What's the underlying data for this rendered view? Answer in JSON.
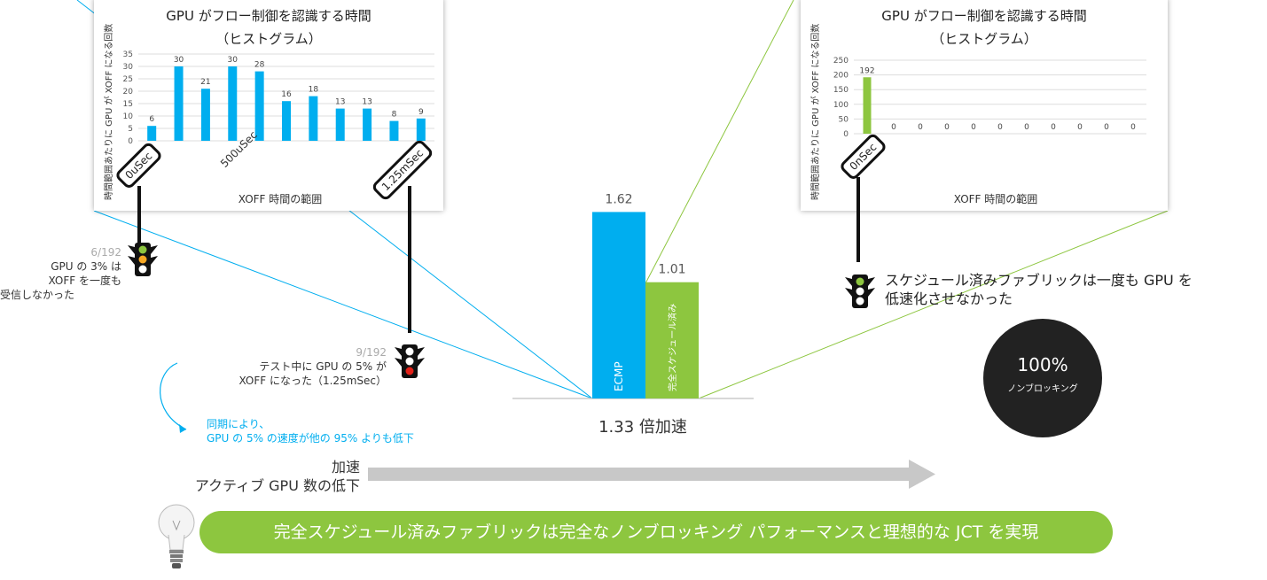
{
  "colors": {
    "blue": "#00AEEF",
    "green": "#8DC63F",
    "arrow": "#c8c8c8",
    "dark": "#222222"
  },
  "left_panel": {
    "title_line1": "GPU がフロー制御を認識する時間",
    "title_line2": "（ヒストグラム）",
    "ylabel": "時間範囲あたりに GPU が XOFF になる回数",
    "xlabel": "XOFF 時間の範囲",
    "x_mid_label": "500uSec",
    "tag_start": "0uSec",
    "tag_end": "1.25mSec"
  },
  "right_panel": {
    "title_line1": "GPU がフロー制御を認識する時間",
    "title_line2": "（ヒストグラム）",
    "ylabel": "時間範囲あたりに GPU が XOFF になる回数",
    "xlabel": "XOFF 時間の範囲",
    "tag_start": "0nSec"
  },
  "chart_data": [
    {
      "type": "bar",
      "title": "GPU がフロー制御を認識する時間（ヒストグラム）",
      "xlabel": "XOFF 時間の範囲",
      "ylabel": "時間範囲あたりに GPU が XOFF になる回数",
      "ylim": [
        0,
        35
      ],
      "yticks": [
        0,
        5,
        10,
        15,
        20,
        25,
        30,
        35
      ],
      "values": [
        6,
        30,
        21,
        30,
        28,
        16,
        18,
        13,
        13,
        8,
        9
      ],
      "color": "#00AEEF",
      "grid": true
    },
    {
      "type": "bar",
      "title": "GPU がフロー制御を認識する時間（ヒストグラム）",
      "xlabel": "XOFF 時間の範囲",
      "ylabel": "時間範囲あたりに GPU が XOFF になる回数",
      "ylim": [
        0,
        250
      ],
      "yticks": [
        0,
        50,
        100,
        150,
        200,
        250
      ],
      "values": [
        192,
        0,
        0,
        0,
        0,
        0,
        0,
        0,
        0,
        0,
        0
      ],
      "color": "#8DC63F",
      "grid": true
    },
    {
      "type": "bar",
      "categories": [
        "ECMP",
        "完全スケジュール済み"
      ],
      "values": [
        1.62,
        1.01
      ],
      "colors": [
        "#00AEEF",
        "#8DC63F"
      ],
      "xlabel": "1.33 倍加速"
    }
  ],
  "notes": {
    "left_frac": "6/192",
    "left_text": [
      "GPU の 3% は",
      "XOFF を一度も",
      "受信しなかった"
    ],
    "mid_frac": "9/192",
    "mid_text": [
      "テスト中に GPU の 5% が",
      "XOFF になった（1.25mSec）"
    ],
    "sync_text": [
      "同期により、",
      "GPU の 5% の速度が他の 95% よりも低下"
    ],
    "right_text": [
      "スケジュール済みファブリックは一度も GPU を",
      "低速化させなかった"
    ]
  },
  "circle": {
    "percent": "100%",
    "label": "ノンブロッキング"
  },
  "arrow_label": [
    "加速",
    "アクティブ GPU 数の低下"
  ],
  "banner": "完全スケジュール済みファブリックは完全なノンブロッキング パフォーマンスと理想的な JCT を実現"
}
